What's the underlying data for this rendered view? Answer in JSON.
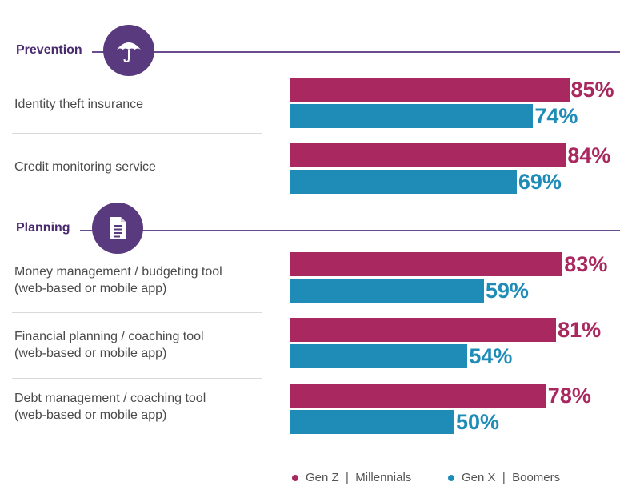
{
  "sections": [
    {
      "title": "Prevention",
      "icon": "umbrella-icon"
    },
    {
      "title": "Planning",
      "icon": "document-icon"
    }
  ],
  "colors": {
    "gen_z_millennials": "#a8285f",
    "gen_x_boomers": "#1f8cb8",
    "section": "#5a3a7e"
  },
  "legend": {
    "series_a_label": "Gen Z  |  Millennials",
    "series_b_label": "Gen X  |  Boomers"
  },
  "chart_data": {
    "type": "bar",
    "orientation": "horizontal",
    "categories": [
      "Identity theft insurance",
      "Credit monitoring service",
      "Money management / budgeting tool (web-based or mobile app)",
      "Financial planning / coaching tool (web-based or mobile app)",
      "Debt management / coaching tool (web-based or mobile app)"
    ],
    "category_lines": [
      [
        "Identity theft insurance"
      ],
      [
        "Credit monitoring service"
      ],
      [
        "Money management / budgeting tool",
        "(web-based or mobile app)"
      ],
      [
        "Financial planning / coaching tool",
        "(web-based or mobile app)"
      ],
      [
        "Debt management / coaching tool",
        "(web-based or mobile app)"
      ]
    ],
    "groups": [
      "Prevention",
      "Prevention",
      "Planning",
      "Planning",
      "Planning"
    ],
    "series": [
      {
        "name": "Gen Z | Millennials",
        "values": [
          85,
          84,
          83,
          81,
          78
        ],
        "labels": [
          "85%",
          "84%",
          "83%",
          "81%",
          "78%"
        ]
      },
      {
        "name": "Gen X | Boomers",
        "values": [
          74,
          69,
          59,
          54,
          50
        ],
        "labels": [
          "74%",
          "69%",
          "59%",
          "54%",
          "50%"
        ]
      }
    ],
    "xlim": [
      0,
      100
    ],
    "legend_position": "bottom-right"
  }
}
